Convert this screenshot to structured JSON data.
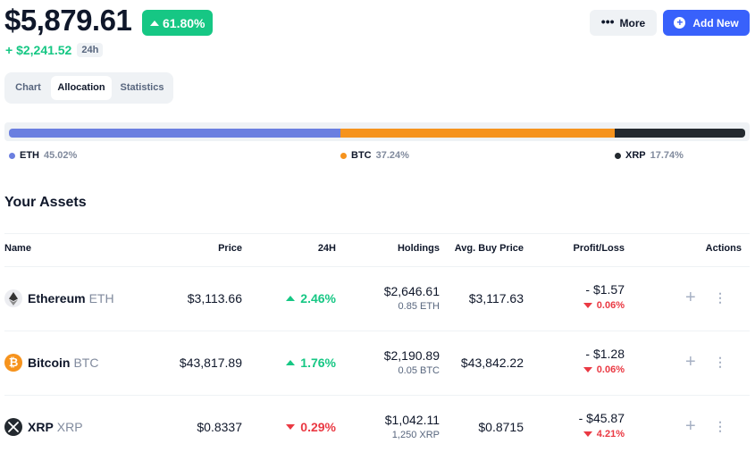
{
  "portfolio": {
    "total_value": "$5,879.61",
    "change_pct": "61.80%",
    "gain": "+ $2,241.52",
    "period": "24h"
  },
  "header_actions": {
    "more_label": "More",
    "add_label": "Add New"
  },
  "tabs": [
    {
      "label": "Chart",
      "active": false
    },
    {
      "label": "Allocation",
      "active": true
    },
    {
      "label": "Statistics",
      "active": false
    }
  ],
  "allocation": [
    {
      "symbol": "ETH",
      "pct_label": "45.02%",
      "pct": 45.02,
      "color": "#6b7fe0"
    },
    {
      "symbol": "BTC",
      "pct_label": "37.24%",
      "pct": 37.24,
      "color": "#f6931d"
    },
    {
      "symbol": "XRP",
      "pct_label": "17.74%",
      "pct": 17.74,
      "color": "#23292f"
    }
  ],
  "assets_section": {
    "title": "Your Assets",
    "columns": {
      "name": "Name",
      "price": "Price",
      "change": "24H",
      "holdings": "Holdings",
      "avg_buy": "Avg. Buy Price",
      "pl": "Profit/Loss",
      "actions": "Actions"
    },
    "rows": [
      {
        "name": "Ethereum",
        "symbol": "ETH",
        "icon": "ethereum-icon",
        "icon_bg": "#ecedf1",
        "price": "$3,113.66",
        "change": "2.46%",
        "change_dir": "up",
        "holdings_value": "$2,646.61",
        "holdings_qty": "0.85 ETH",
        "avg_buy": "$3,117.63",
        "pl_value": "- $1.57",
        "pl_pct": "0.06%",
        "pl_dir": "down"
      },
      {
        "name": "Bitcoin",
        "symbol": "BTC",
        "icon": "bitcoin-icon",
        "icon_bg": "#f6931d",
        "price": "$43,817.89",
        "change": "1.76%",
        "change_dir": "up",
        "holdings_value": "$2,190.89",
        "holdings_qty": "0.05 BTC",
        "avg_buy": "$43,842.22",
        "pl_value": "- $1.28",
        "pl_pct": "0.06%",
        "pl_dir": "down"
      },
      {
        "name": "XRP",
        "symbol": "XRP",
        "icon": "xrp-icon",
        "icon_bg": "#23292f",
        "price": "$0.8337",
        "change": "0.29%",
        "change_dir": "down",
        "holdings_value": "$1,042.11",
        "holdings_qty": "1,250 XRP",
        "avg_buy": "$0.8715",
        "pl_value": "- $45.87",
        "pl_pct": "4.21%",
        "pl_dir": "down"
      }
    ]
  },
  "colors": {
    "positive": "#16c784",
    "negative": "#ea3943",
    "accent": "#3861fb"
  }
}
